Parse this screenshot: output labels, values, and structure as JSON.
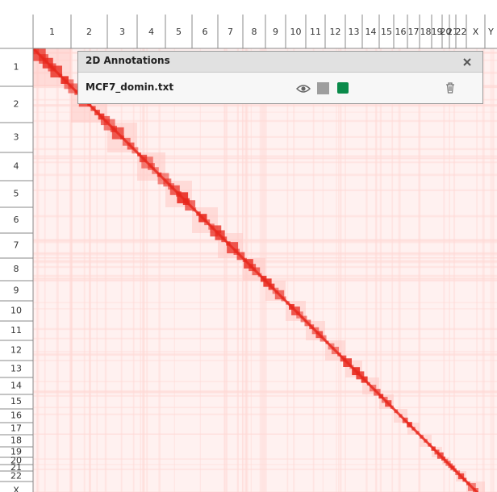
{
  "top_labels": [
    "1",
    "2",
    "3",
    "4",
    "5",
    "6",
    "7",
    "8",
    "9",
    "10",
    "11",
    "12",
    "13",
    "14",
    "15",
    "16",
    "17",
    "18",
    "19",
    "20",
    "21",
    "22",
    "X",
    "Y"
  ],
  "left_labels": [
    "1",
    "2",
    "3",
    "4",
    "5",
    "6",
    "7",
    "8",
    "9",
    "10",
    "11",
    "12",
    "13",
    "14",
    "15",
    "16",
    "17",
    "18",
    "19",
    "20",
    "21",
    "22",
    "X"
  ],
  "panel": {
    "title": "2D Annotations",
    "file": "MCF7_domin.txt"
  }
}
